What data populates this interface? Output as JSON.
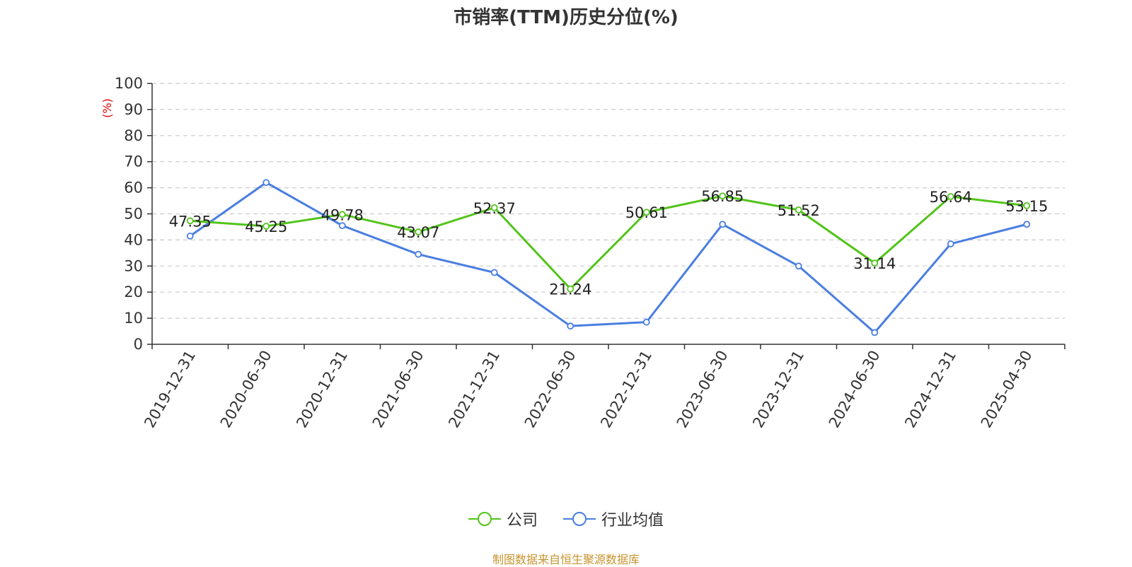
{
  "title": "市销率(TTM)历史分位(%)",
  "source_note": "制图数据来自恒生聚源数据库",
  "colors": {
    "company": "#52c41a",
    "industry": "#4a7ee0",
    "axis": "#333333",
    "grid": "#cccccc",
    "unit": "#e00000",
    "source": "#c7942f"
  },
  "legend": [
    {
      "label": "公司",
      "color": "#52c41a"
    },
    {
      "label": "行业均值",
      "color": "#4a7ee0"
    }
  ],
  "chart_data": {
    "type": "line",
    "title": "市销率(TTM)历史分位(%)",
    "ylabel": "(%)",
    "xlabel": "",
    "ylim": [
      0,
      100
    ],
    "yticks": [
      0,
      10,
      20,
      30,
      40,
      50,
      60,
      70,
      80,
      90,
      100
    ],
    "grid": true,
    "legend_position": "bottom",
    "categories": [
      "2019-12-31",
      "2020-06-30",
      "2020-12-31",
      "2021-06-30",
      "2021-12-31",
      "2022-06-30",
      "2022-12-31",
      "2023-06-30",
      "2023-12-31",
      "2024-06-30",
      "2024-12-31",
      "2025-04-30"
    ],
    "series": [
      {
        "name": "公司",
        "color": "#52c41a",
        "values": [
          47.35,
          45.25,
          49.78,
          43.07,
          52.37,
          21.24,
          50.61,
          56.85,
          51.52,
          31.14,
          56.64,
          53.15
        ],
        "labels": [
          "47.35",
          "45.25",
          "49.78",
          "43.07",
          "52.37",
          "21.24",
          "50.61",
          "56.85",
          "51.52",
          "31.14",
          "56.64",
          "53.15"
        ]
      },
      {
        "name": "行业均值",
        "color": "#4a7ee0",
        "values": [
          41.5,
          62.0,
          45.5,
          34.5,
          27.5,
          7.0,
          8.5,
          46.0,
          30.0,
          4.5,
          38.5,
          46.0
        ]
      }
    ]
  }
}
